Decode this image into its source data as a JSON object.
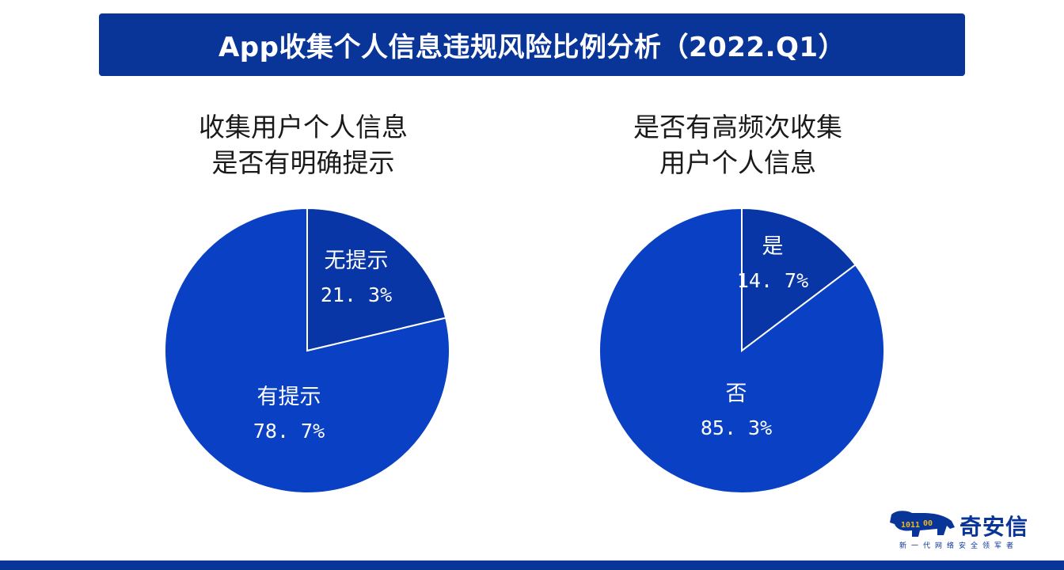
{
  "title": "App收集个人信息违规风险比例分析（2022.Q1）",
  "colors": {
    "primary": "#0a3598",
    "slice_major": "#0a41c4",
    "slice_minor": "#0936a6"
  },
  "chart_data": [
    {
      "type": "pie",
      "title_lines": [
        "收集用户个人信息",
        "是否有明确提示"
      ],
      "slices": [
        {
          "label": "无提示",
          "value": 21.3,
          "value_text": "21. 3%"
        },
        {
          "label": "有提示",
          "value": 78.7,
          "value_text": "78. 7%"
        }
      ]
    },
    {
      "type": "pie",
      "title_lines": [
        "是否有高频次收集",
        "用户个人信息"
      ],
      "slices": [
        {
          "label": "是",
          "value": 14.7,
          "value_text": "14. 7%"
        },
        {
          "label": "否",
          "value": 85.3,
          "value_text": "85. 3%"
        }
      ]
    }
  ],
  "logo": {
    "brand": "奇安信",
    "slogan": "新一代网络安全领军者",
    "icon": "tiger-binary-logo-icon"
  }
}
